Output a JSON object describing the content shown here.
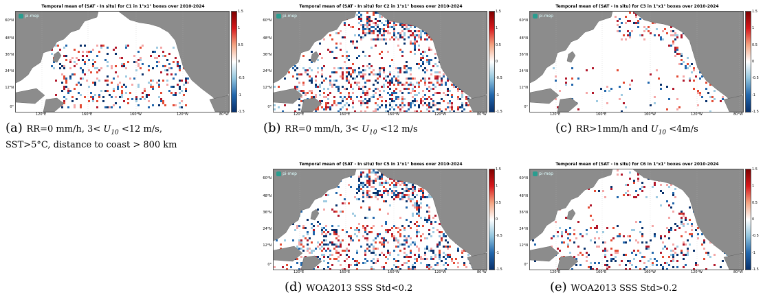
{
  "panels": [
    {
      "id": "a",
      "title": "Temporal mean of (SAT - In situ) for C1 in 1°x1° boxes over 2010-2024",
      "caption_letter": "(a)",
      "caption_line1_pre": "RR=0 mm/h, 3< ",
      "caption_u": "U",
      "caption_u_sub": "10",
      "caption_line1_post": " <12 m/s,",
      "caption_line2": "SST>5°C, distance to coast > 800 km",
      "density": 0.16,
      "pattern": "open-ocean"
    },
    {
      "id": "b",
      "title": "Temporal mean of (SAT - In situ) for C2 in 1°x1° boxes over 2010-2024",
      "caption_letter": "(b)",
      "caption_line1_pre": "RR=0 mm/h, 3< ",
      "caption_u": "U",
      "caption_u_sub": "10",
      "caption_line1_post": " <12 m/s",
      "caption_line2": "",
      "density": 0.32,
      "pattern": "coastal"
    },
    {
      "id": "c",
      "title": "Temporal mean of (SAT - In situ) for C3 in 1°x1° boxes over 2010-2024",
      "caption_letter": "(c)",
      "caption_line1_pre": "RR>1mm/h and ",
      "caption_u": "U",
      "caption_u_sub": "10",
      "caption_line1_post": " <4m/s",
      "caption_line2": "",
      "density": 0.03,
      "pattern": "sparse"
    },
    {
      "id": "d",
      "title": "Temporal mean of (SAT - In situ) for C5 in 1°x1° boxes over 2010-2024",
      "caption_letter": "(d)",
      "caption_line1_pre": "WOA2013 SSS Std<0.2",
      "caption_u": "",
      "caption_u_sub": "",
      "caption_line1_post": "",
      "caption_line2": "",
      "density": 0.3,
      "pattern": "coastal"
    },
    {
      "id": "e",
      "title": "Temporal mean of (SAT - In situ) for C6 in 1°x1° boxes over 2010-2024",
      "caption_letter": "(e)",
      "caption_line1_pre": "WOA2013 SSS Std>0.2",
      "caption_u": "",
      "caption_u_sub": "",
      "caption_line1_post": "",
      "caption_line2": "",
      "density": 0.12,
      "pattern": "scattered"
    }
  ],
  "colorbar_ticks": [
    "1.5",
    "1",
    "0.5",
    "0",
    "-0.5",
    "-1",
    "-1.5"
  ],
  "lat_ticks": [
    "60°N",
    "48°N",
    "36°N",
    "24°N",
    "12°N",
    "0°"
  ],
  "lon_ticks": [
    "120°E",
    "160°E",
    "160°W",
    "120°W",
    "80°W"
  ],
  "logo_text": "pi-mep",
  "colors": {
    "land": "#8c8c8c",
    "pos_strong": "#b2182b",
    "pos_mid": "#e34a33",
    "pos_light": "#f4a6a6",
    "neg_strong": "#08306b",
    "neg_mid": "#2166ac",
    "neg_light": "#9ecae1"
  }
}
